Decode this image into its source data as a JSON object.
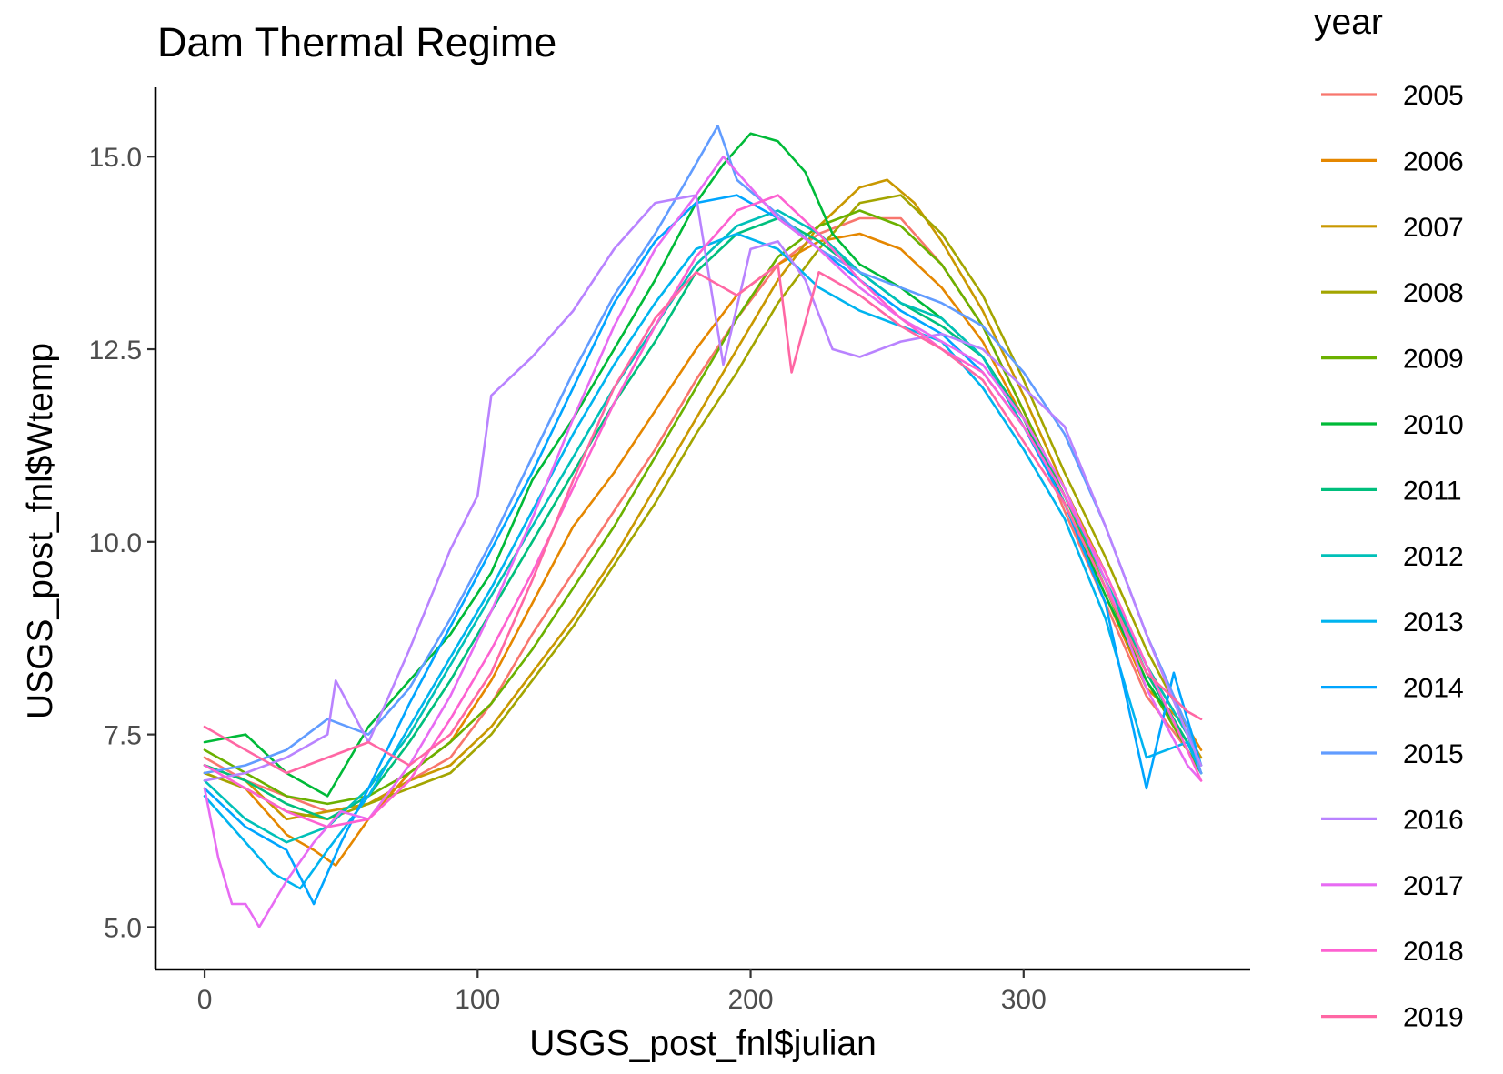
{
  "chart_data": {
    "type": "line",
    "title": "Dam Thermal Regime",
    "xlabel": "USGS_post_fnl$julian",
    "ylabel": "USGS_post_fnl$Wtemp",
    "xlim": [
      -18,
      383
    ],
    "ylim": [
      4.45,
      15.9
    ],
    "x_ticks": [
      0,
      100,
      200,
      300
    ],
    "x_tick_labels": [
      "0",
      "100",
      "200",
      "300"
    ],
    "y_ticks": [
      5.0,
      7.5,
      10.0,
      12.5,
      15.0
    ],
    "y_tick_labels": [
      "5.0",
      "7.5",
      "10.0",
      "12.5",
      "15.0"
    ],
    "grid": false,
    "legend": {
      "title": "year",
      "placement": "right"
    },
    "series": [
      {
        "name": "2005",
        "color": "#F8766D",
        "x": [
          0,
          15,
          30,
          45,
          60,
          75,
          90,
          105,
          120,
          135,
          150,
          165,
          180,
          195,
          210,
          225,
          240,
          255,
          270,
          285,
          300,
          315,
          330,
          345,
          360,
          365
        ],
        "y": [
          7.2,
          6.9,
          6.7,
          6.5,
          6.6,
          6.9,
          7.2,
          7.9,
          8.8,
          9.6,
          10.4,
          11.2,
          12.1,
          12.9,
          13.6,
          14.0,
          14.2,
          14.2,
          13.6,
          12.8,
          11.7,
          10.4,
          9.2,
          8.0,
          7.3,
          7.0
        ]
      },
      {
        "name": "2006",
        "color": "#E58700",
        "x": [
          0,
          15,
          30,
          40,
          48,
          60,
          75,
          90,
          105,
          120,
          135,
          150,
          165,
          180,
          195,
          210,
          225,
          240,
          255,
          270,
          285,
          300,
          315,
          330,
          345,
          360,
          365
        ],
        "y": [
          7.0,
          6.8,
          6.2,
          6.0,
          5.8,
          6.4,
          7.0,
          7.4,
          8.2,
          9.2,
          10.2,
          10.9,
          11.7,
          12.5,
          13.2,
          13.6,
          13.9,
          14.0,
          13.8,
          13.3,
          12.6,
          11.6,
          10.5,
          9.3,
          8.1,
          7.6,
          7.3
        ]
      },
      {
        "name": "2007",
        "color": "#C99800",
        "x": [
          0,
          15,
          30,
          45,
          60,
          75,
          90,
          105,
          120,
          135,
          150,
          165,
          180,
          195,
          210,
          225,
          240,
          250,
          260,
          270,
          285,
          300,
          315,
          330,
          345,
          360,
          365
        ],
        "y": [
          7.1,
          6.9,
          6.4,
          6.5,
          6.6,
          6.9,
          7.1,
          7.6,
          8.3,
          9.0,
          9.8,
          10.7,
          11.6,
          12.5,
          13.4,
          14.1,
          14.6,
          14.7,
          14.4,
          13.9,
          13.0,
          11.9,
          10.7,
          9.6,
          8.4,
          7.5,
          7.2
        ]
      },
      {
        "name": "2008",
        "color": "#A3A500",
        "x": [
          0,
          15,
          30,
          45,
          60,
          75,
          90,
          105,
          120,
          135,
          150,
          165,
          180,
          195,
          210,
          225,
          240,
          255,
          270,
          285,
          300,
          315,
          330,
          345,
          360,
          365
        ],
        "y": [
          7.0,
          6.8,
          6.5,
          6.4,
          6.6,
          6.8,
          7.0,
          7.5,
          8.2,
          8.9,
          9.7,
          10.5,
          11.4,
          12.2,
          13.1,
          13.8,
          14.4,
          14.5,
          14.0,
          13.2,
          12.1,
          10.9,
          9.8,
          8.6,
          7.6,
          7.1
        ]
      },
      {
        "name": "2009",
        "color": "#6BB100",
        "x": [
          0,
          15,
          30,
          45,
          60,
          75,
          90,
          105,
          120,
          135,
          150,
          165,
          180,
          195,
          210,
          225,
          240,
          255,
          270,
          285,
          300,
          315,
          330,
          345,
          360,
          365
        ],
        "y": [
          7.3,
          7.0,
          6.7,
          6.6,
          6.7,
          7.0,
          7.4,
          7.9,
          8.6,
          9.4,
          10.2,
          11.1,
          12.0,
          12.9,
          13.7,
          14.1,
          14.3,
          14.1,
          13.6,
          12.8,
          11.7,
          10.6,
          9.4,
          8.2,
          7.3,
          7.0
        ]
      },
      {
        "name": "2010",
        "color": "#00BA38",
        "x": [
          0,
          15,
          30,
          45,
          60,
          75,
          90,
          105,
          120,
          135,
          150,
          165,
          180,
          190,
          200,
          210,
          220,
          230,
          240,
          255,
          270,
          285,
          300,
          315,
          330,
          345,
          360,
          365
        ],
        "y": [
          7.4,
          7.5,
          7.0,
          6.7,
          7.6,
          8.2,
          8.8,
          9.6,
          10.8,
          11.6,
          12.5,
          13.4,
          14.4,
          14.9,
          15.3,
          15.2,
          14.8,
          14.0,
          13.6,
          13.3,
          12.9,
          12.4,
          11.6,
          10.5,
          9.3,
          8.2,
          7.4,
          7.0
        ]
      },
      {
        "name": "2011",
        "color": "#00BF7D",
        "x": [
          0,
          15,
          30,
          45,
          60,
          75,
          90,
          105,
          120,
          135,
          150,
          165,
          180,
          195,
          210,
          225,
          240,
          255,
          270,
          285,
          300,
          315,
          330,
          345,
          360,
          365
        ],
        "y": [
          7.1,
          6.9,
          6.6,
          6.4,
          6.7,
          7.4,
          8.2,
          9.1,
          10.0,
          10.9,
          11.8,
          12.6,
          13.5,
          14.0,
          14.2,
          13.9,
          13.5,
          13.1,
          12.8,
          12.4,
          11.6,
          10.6,
          9.5,
          8.3,
          7.4,
          7.0
        ]
      },
      {
        "name": "2012",
        "color": "#00C0B8",
        "x": [
          0,
          15,
          30,
          45,
          60,
          75,
          90,
          105,
          120,
          135,
          150,
          165,
          180,
          195,
          210,
          225,
          240,
          255,
          270,
          285,
          300,
          315,
          330,
          345,
          360,
          365
        ],
        "y": [
          6.9,
          6.4,
          6.1,
          6.3,
          6.8,
          7.5,
          8.4,
          9.3,
          10.2,
          11.1,
          12.0,
          12.8,
          13.6,
          14.1,
          14.3,
          14.0,
          13.5,
          13.1,
          12.9,
          12.4,
          11.5,
          10.6,
          9.5,
          8.4,
          7.5,
          7.0
        ]
      },
      {
        "name": "2013",
        "color": "#00B4EF",
        "x": [
          0,
          15,
          25,
          35,
          45,
          60,
          75,
          90,
          105,
          120,
          135,
          150,
          165,
          180,
          195,
          210,
          225,
          240,
          255,
          270,
          285,
          300,
          315,
          330,
          345,
          360,
          365
        ],
        "y": [
          6.7,
          6.1,
          5.7,
          5.5,
          6.0,
          6.7,
          7.6,
          8.5,
          9.4,
          10.4,
          11.4,
          12.3,
          13.1,
          13.8,
          14.0,
          13.8,
          13.3,
          13.0,
          12.8,
          12.6,
          12.0,
          11.2,
          10.3,
          9.0,
          7.2,
          7.4,
          7.0
        ]
      },
      {
        "name": "2014",
        "color": "#00A5FF",
        "x": [
          0,
          15,
          30,
          40,
          50,
          60,
          75,
          90,
          105,
          120,
          135,
          150,
          165,
          180,
          195,
          210,
          225,
          240,
          255,
          270,
          285,
          300,
          315,
          330,
          345,
          355,
          365
        ],
        "y": [
          6.8,
          6.3,
          6.0,
          5.3,
          6.1,
          6.8,
          7.9,
          8.9,
          9.9,
          10.9,
          12.0,
          13.1,
          13.9,
          14.4,
          14.5,
          14.2,
          13.8,
          13.4,
          13.0,
          12.7,
          12.2,
          11.5,
          10.5,
          9.2,
          6.8,
          8.3,
          7.1
        ]
      },
      {
        "name": "2015",
        "color": "#619CFF",
        "x": [
          0,
          15,
          30,
          45,
          60,
          75,
          90,
          105,
          120,
          135,
          150,
          165,
          175,
          188,
          195,
          205,
          215,
          225,
          240,
          255,
          270,
          285,
          300,
          315,
          330,
          345,
          360,
          365
        ],
        "y": [
          7.0,
          7.1,
          7.3,
          7.7,
          7.5,
          8.1,
          9.0,
          10.0,
          11.1,
          12.2,
          13.2,
          14.0,
          14.6,
          15.4,
          14.7,
          14.4,
          14.1,
          13.8,
          13.5,
          13.3,
          13.1,
          12.8,
          12.2,
          11.4,
          10.2,
          8.8,
          7.6,
          7.0
        ]
      },
      {
        "name": "2016",
        "color": "#B983FF",
        "x": [
          0,
          15,
          30,
          45,
          48,
          60,
          75,
          90,
          100,
          105,
          120,
          135,
          150,
          165,
          180,
          190,
          200,
          210,
          220,
          230,
          240,
          255,
          270,
          285,
          300,
          315,
          330,
          345,
          360,
          365
        ],
        "y": [
          6.9,
          7.0,
          7.2,
          7.5,
          8.2,
          7.4,
          8.6,
          9.9,
          10.6,
          11.9,
          12.4,
          13.0,
          13.8,
          14.4,
          14.5,
          12.3,
          13.8,
          13.9,
          13.4,
          12.5,
          12.4,
          12.6,
          12.7,
          12.5,
          12.0,
          11.5,
          10.2,
          8.8,
          7.5,
          7.1
        ]
      },
      {
        "name": "2017",
        "color": "#E76BF3",
        "x": [
          0,
          5,
          10,
          15,
          20,
          30,
          40,
          50,
          60,
          75,
          90,
          105,
          120,
          135,
          150,
          165,
          180,
          190,
          200,
          210,
          225,
          240,
          255,
          270,
          285,
          300,
          315,
          330,
          345,
          360,
          365
        ],
        "y": [
          6.8,
          5.9,
          5.3,
          5.3,
          5.0,
          5.6,
          6.1,
          6.5,
          6.4,
          7.1,
          8.0,
          9.1,
          10.3,
          11.6,
          12.8,
          13.8,
          14.5,
          15.0,
          14.6,
          14.2,
          13.8,
          13.3,
          12.9,
          12.6,
          12.3,
          11.6,
          10.7,
          9.5,
          8.1,
          7.1,
          6.9
        ]
      },
      {
        "name": "2018",
        "color": "#FD61D1",
        "x": [
          0,
          15,
          30,
          45,
          60,
          75,
          90,
          105,
          120,
          135,
          150,
          165,
          180,
          195,
          210,
          225,
          240,
          255,
          270,
          285,
          300,
          315,
          330,
          345,
          360,
          365
        ],
        "y": [
          7.1,
          6.8,
          6.5,
          6.3,
          6.4,
          6.9,
          7.7,
          8.6,
          9.6,
          10.7,
          11.8,
          12.8,
          13.7,
          14.3,
          14.5,
          14.0,
          13.4,
          12.9,
          12.5,
          12.2,
          11.5,
          10.6,
          9.6,
          8.4,
          7.3,
          6.9
        ]
      },
      {
        "name": "2019",
        "color": "#FF67A4",
        "x": [
          0,
          15,
          30,
          45,
          60,
          75,
          90,
          105,
          120,
          135,
          150,
          165,
          180,
          195,
          210,
          215,
          225,
          240,
          255,
          270,
          285,
          300,
          315,
          330,
          345,
          360,
          365
        ],
        "y": [
          7.6,
          7.3,
          7.0,
          7.2,
          7.4,
          7.1,
          7.5,
          8.3,
          9.5,
          10.8,
          12.0,
          12.9,
          13.5,
          13.2,
          13.6,
          12.2,
          13.5,
          13.2,
          12.8,
          12.5,
          12.1,
          11.3,
          10.5,
          9.4,
          8.3,
          7.8,
          7.7
        ]
      }
    ]
  }
}
